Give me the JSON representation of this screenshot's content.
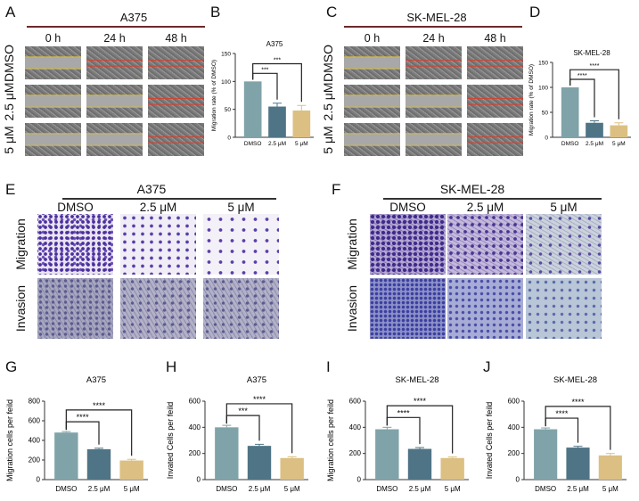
{
  "panels": {
    "A": "A",
    "B": "B",
    "C": "C",
    "D": "D",
    "E": "E",
    "F": "F",
    "G": "G",
    "H": "H",
    "I": "I",
    "J": "J"
  },
  "wound_healing": {
    "a375_title": "A375",
    "skmel_title": "SK-MEL-28",
    "times": [
      "0 h",
      "24 h",
      "48 h"
    ],
    "rows": [
      "DMSO",
      "2.5 μM",
      "5 μM"
    ]
  },
  "transwell": {
    "a375_title": "A375",
    "skmel_title": "SK-MEL-28",
    "columns": [
      "DMSO",
      "2.5 μM",
      "5 μM"
    ],
    "rows": [
      "Migration",
      "Invasion"
    ]
  },
  "colors": {
    "DMSO": "#7fa3a8",
    "2.5 μM": "#4f7486",
    "5 μM": "#dcc083"
  },
  "chart_data": [
    {
      "id": "B",
      "type": "bar",
      "title": "A375",
      "ylabel": "Migration rate (% of DMSO)",
      "categories": [
        "DMSO",
        "2.5 μM",
        "5 μM"
      ],
      "values": [
        100,
        55,
        48
      ],
      "errors": [
        0,
        6,
        9
      ],
      "ylim": [
        0,
        150
      ],
      "yticks": [
        0,
        50,
        100,
        150
      ],
      "annotations": [
        {
          "compare": [
            "DMSO",
            "2.5 μM"
          ],
          "label": "***"
        },
        {
          "compare": [
            "DMSO",
            "5 μM"
          ],
          "label": "***"
        }
      ]
    },
    {
      "id": "D",
      "type": "bar",
      "title": "SK-MEL-28",
      "ylabel": "Migration rate (% of DMSO)",
      "categories": [
        "DMSO",
        "2.5 μM",
        "5 μM"
      ],
      "values": [
        100,
        29,
        24
      ],
      "errors": [
        0,
        4,
        5
      ],
      "ylim": [
        0,
        150
      ],
      "yticks": [
        0,
        50,
        100,
        150
      ],
      "annotations": [
        {
          "compare": [
            "DMSO",
            "2.5 μM"
          ],
          "label": "****"
        },
        {
          "compare": [
            "DMSO",
            "5 μM"
          ],
          "label": "****"
        }
      ]
    },
    {
      "id": "G",
      "type": "bar",
      "title": "A375",
      "ylabel": "Migration cells per feild",
      "categories": [
        "DMSO",
        "2.5 μM",
        "5 μM"
      ],
      "values": [
        480,
        310,
        195
      ],
      "errors": [
        10,
        10,
        12
      ],
      "ylim": [
        0,
        800
      ],
      "yticks": [
        0,
        200,
        400,
        600,
        800
      ],
      "annotations": [
        {
          "compare": [
            "DMSO",
            "2.5 μM"
          ],
          "label": "****"
        },
        {
          "compare": [
            "DMSO",
            "5 μM"
          ],
          "label": "****"
        }
      ]
    },
    {
      "id": "H",
      "type": "bar",
      "title": "A375",
      "ylabel": "Invated Cells per feild",
      "categories": [
        "DMSO",
        "2.5 μM",
        "5 μM"
      ],
      "values": [
        400,
        258,
        165
      ],
      "errors": [
        15,
        12,
        10
      ],
      "ylim": [
        0,
        600
      ],
      "yticks": [
        0,
        200,
        400,
        600
      ],
      "annotations": [
        {
          "compare": [
            "DMSO",
            "2.5 μM"
          ],
          "label": "***"
        },
        {
          "compare": [
            "DMSO",
            "5 μM"
          ],
          "label": "****"
        }
      ]
    },
    {
      "id": "I",
      "type": "bar",
      "title": "SK-MEL-28",
      "ylabel": "Migration cells per feild",
      "categories": [
        "DMSO",
        "2.5 μM",
        "5 μM"
      ],
      "values": [
        385,
        235,
        165
      ],
      "errors": [
        15,
        10,
        8
      ],
      "ylim": [
        0,
        600
      ],
      "yticks": [
        0,
        200,
        400,
        600
      ],
      "annotations": [
        {
          "compare": [
            "DMSO",
            "2.5 μM"
          ],
          "label": "****"
        },
        {
          "compare": [
            "DMSO",
            "5 μM"
          ],
          "label": "****"
        }
      ]
    },
    {
      "id": "J",
      "type": "bar",
      "title": "SK-MEL-28",
      "ylabel": "Invated Cells per feild",
      "categories": [
        "DMSO",
        "2.5 μM",
        "5 μM"
      ],
      "values": [
        385,
        245,
        185
      ],
      "errors": [
        10,
        10,
        15
      ],
      "ylim": [
        0,
        600
      ],
      "yticks": [
        0,
        200,
        400,
        600
      ],
      "annotations": [
        {
          "compare": [
            "DMSO",
            "2.5 μM"
          ],
          "label": "****"
        },
        {
          "compare": [
            "DMSO",
            "5 μM"
          ],
          "label": "****"
        }
      ]
    }
  ]
}
